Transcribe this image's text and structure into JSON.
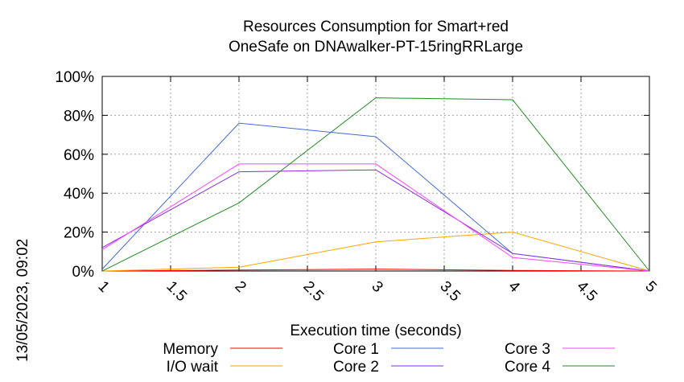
{
  "chart_data": {
    "type": "line",
    "title_line1": "Resources Consumption for Smart+red",
    "title_line2": "OneSafe on DNAwalker-PT-15ringRRLarge",
    "xlabel": "Execution time (seconds)",
    "ylabel": "",
    "timestamp": "13/05/2023, 09:02",
    "xlim": [
      1,
      5
    ],
    "ylim": [
      0,
      100
    ],
    "x_ticks": [
      "1",
      "1.5",
      "2",
      "2.5",
      "3",
      "3.5",
      "4",
      "4.5",
      "5"
    ],
    "y_ticks": [
      "0%",
      "20%",
      "40%",
      "60%",
      "80%",
      "100%"
    ],
    "grid": true,
    "legend_position": "bottom",
    "x": [
      1,
      2,
      3,
      4,
      5
    ],
    "series": [
      {
        "name": "Memory",
        "color": "#ff0000",
        "values": [
          0,
          0.5,
          1,
          0.3,
          0
        ]
      },
      {
        "name": "I/O wait",
        "color": "#ffa500",
        "values": [
          0,
          2,
          15,
          20,
          0
        ]
      },
      {
        "name": "Core 1",
        "color": "#4169e1",
        "values": [
          1,
          76,
          69,
          9,
          0
        ]
      },
      {
        "name": "Core 2",
        "color": "#8a2be2",
        "values": [
          12,
          51,
          52,
          9,
          0
        ]
      },
      {
        "name": "Core 3",
        "color": "#ff44ff",
        "values": [
          11,
          55,
          55,
          7,
          0
        ]
      },
      {
        "name": "Core 4",
        "color": "#228b22",
        "values": [
          0,
          35,
          89,
          88,
          0
        ]
      }
    ]
  }
}
